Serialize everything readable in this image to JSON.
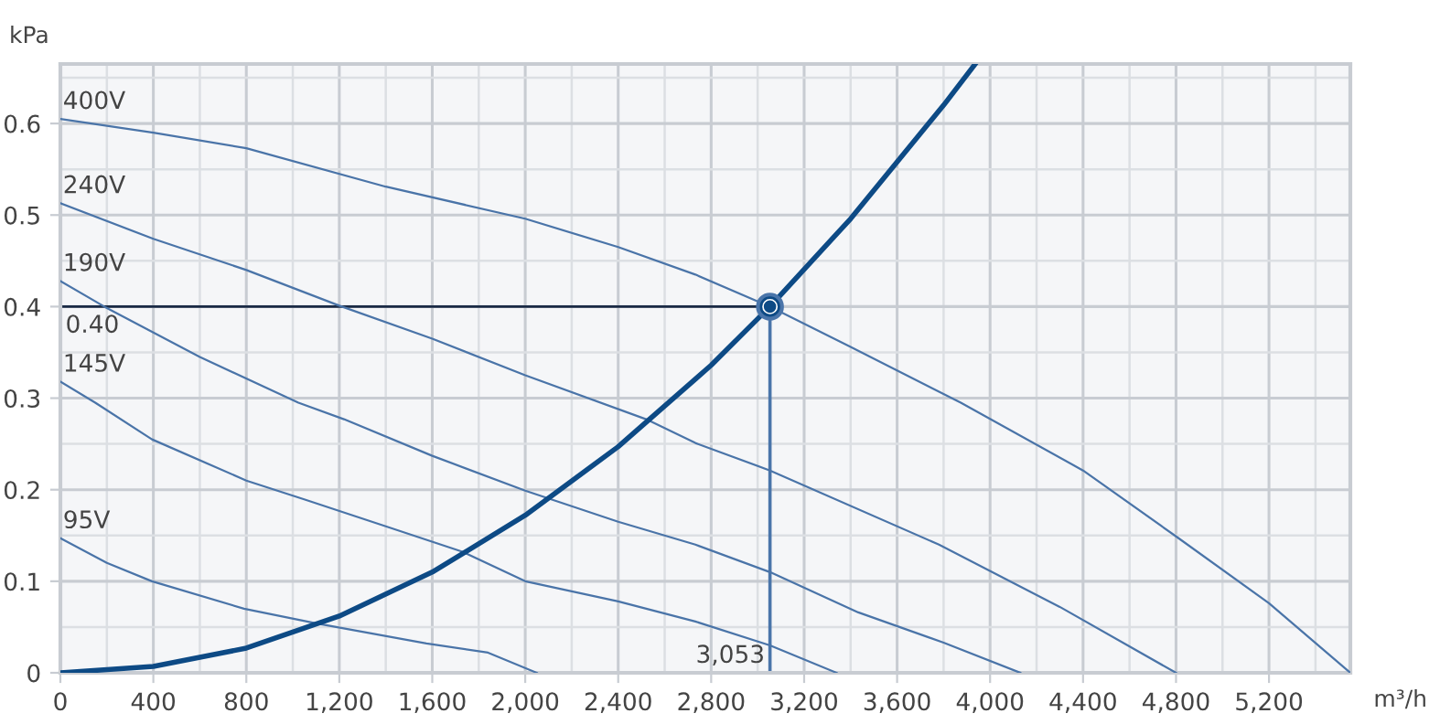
{
  "chart_data": {
    "type": "line",
    "xlabel": "m³/h",
    "ylabel": "kPa",
    "xlim": [
      0,
      5550
    ],
    "ylim": [
      0,
      0.665
    ],
    "xticks": [
      0,
      {
        "value": 400,
        "label": "400"
      },
      {
        "value": 800,
        "label": "800"
      },
      {
        "value": 1200,
        "label": "1,200"
      },
      {
        "value": 1600,
        "label": "1,600"
      },
      {
        "value": 2000,
        "label": "2,000"
      },
      {
        "value": 2400,
        "label": "2,400"
      },
      {
        "value": 2800,
        "label": "2,800"
      },
      {
        "value": 3200,
        "label": "3,200"
      },
      {
        "value": 3600,
        "label": "3,600"
      },
      {
        "value": 4000,
        "label": "4,000"
      },
      {
        "value": 4400,
        "label": "4,400"
      },
      {
        "value": 4800,
        "label": "4,800"
      },
      {
        "value": 5200,
        "label": "5,200"
      }
    ],
    "yticks": [
      0,
      0.1,
      0.2,
      0.3,
      0.4,
      0.5,
      0.6
    ],
    "grid": true,
    "legend": false,
    "marker": "none",
    "line_style": "solid",
    "series": [
      {
        "name": "400V",
        "color": "#4a74a8",
        "x": [
          0,
          400,
          800,
          1400,
          2000,
          2400,
          2732,
          3053,
          3400,
          3874,
          4400,
          4800,
          5200,
          5550
        ],
        "values": [
          0.605,
          0.59,
          0.573,
          0.531,
          0.496,
          0.465,
          0.435,
          0.4,
          0.356,
          0.295,
          0.221,
          0.149,
          0.076,
          0
        ]
      },
      {
        "name": "240V",
        "color": "#4a74a8",
        "x": [
          0,
          400,
          800,
          1200,
          1600,
          2000,
          2520,
          2732,
          3053,
          3780,
          4300,
          4800
        ],
        "values": [
          0.513,
          0.474,
          0.44,
          0.401,
          0.365,
          0.325,
          0.277,
          0.251,
          0.221,
          0.14,
          0.072,
          0
        ]
      },
      {
        "name": "190V",
        "color": "#4a74a8",
        "x": [
          0,
          189,
          600,
          1024,
          1220,
          1600,
          2000,
          2400,
          2732,
          3053,
          3433,
          3800,
          4130
        ],
        "values": [
          0.428,
          0.4,
          0.345,
          0.295,
          0.277,
          0.237,
          0.199,
          0.165,
          0.14,
          0.11,
          0.066,
          0.033,
          0
        ]
      },
      {
        "name": "145V",
        "color": "#4a74a8",
        "x": [
          0,
          150,
          394,
          800,
          1055,
          1400,
          1732,
          2000,
          2400,
          2732,
          3053,
          3340
        ],
        "values": [
          0.318,
          0.295,
          0.255,
          0.21,
          0.189,
          0.16,
          0.132,
          0.1,
          0.078,
          0.056,
          0.03,
          0
        ]
      },
      {
        "name": "95V",
        "color": "#4a74a8",
        "x": [
          0,
          200,
          394,
          790,
          1100,
          1575,
          1840,
          2050
        ],
        "values": [
          0.147,
          0.12,
          0.1,
          0.07,
          0.054,
          0.032,
          0.022,
          0
        ]
      },
      {
        "color": "#0d4a85",
        "x": [
          0,
          400,
          800,
          1200,
          1600,
          2000,
          2400,
          2800,
          3053,
          3400,
          3800,
          3936
        ],
        "values": [
          0,
          0.007,
          0.027,
          0.062,
          0.11,
          0.172,
          0.247,
          0.336,
          0.4,
          0.496,
          0.62,
          0.665
        ]
      },
      {
        "type": "scatter",
        "marker": "circle",
        "color": "#0d4a85",
        "x": [
          3053
        ],
        "values": [
          0.4
        ]
      }
    ],
    "ref_lines": [
      {
        "axis": "y",
        "value": 0.4,
        "label": "0.40",
        "color": "#1a2a44"
      },
      {
        "axis": "x",
        "value": 3053,
        "label": "3,053",
        "color": "#4a75aa"
      }
    ]
  }
}
